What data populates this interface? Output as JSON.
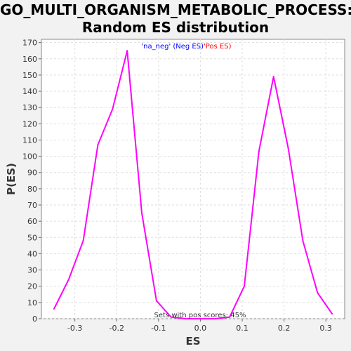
{
  "chart_data": {
    "type": "line",
    "title_lines": [
      "GO_MULTI_ORGANISM_METABOLIC_PROCESS:",
      "Random ES distribution"
    ],
    "xlabel": "ES",
    "ylabel": "P(ES)",
    "xlim": [
      -0.38,
      0.345
    ],
    "ylim": [
      0,
      172
    ],
    "x_ticks": [
      -0.3,
      -0.2,
      -0.1,
      0.0,
      0.1,
      0.2,
      0.3
    ],
    "x_tick_labels": [
      "-0.3",
      "-0.2",
      "-0.1",
      "0.0",
      "0.1",
      "0.2",
      "0.3"
    ],
    "y_ticks": [
      0,
      10,
      20,
      30,
      40,
      50,
      60,
      70,
      80,
      90,
      100,
      110,
      120,
      130,
      140,
      150,
      160,
      170
    ],
    "grid": true,
    "legend_position": "top-center",
    "legend": {
      "neg_label": "'na_neg' (Neg ES)",
      "pos_label": "'Pos ES)",
      "neg_color": "#0000ff",
      "pos_color": "#ff0000"
    },
    "annotation": "Sets with pos scores: 45%",
    "series": [
      {
        "color": "#ff00ff",
        "x": [
          -0.35,
          -0.315,
          -0.28,
          -0.245,
          -0.21,
          -0.175,
          -0.14,
          -0.105,
          -0.07,
          -0.035,
          0.0,
          0.035,
          0.07,
          0.105,
          0.14,
          0.175,
          0.21,
          0.245,
          0.28,
          0.315
        ],
        "y": [
          6,
          24,
          48,
          107,
          129,
          165,
          65,
          11,
          1,
          0,
          0,
          0,
          1,
          20,
          103,
          149,
          105,
          48,
          16,
          3
        ]
      }
    ]
  }
}
